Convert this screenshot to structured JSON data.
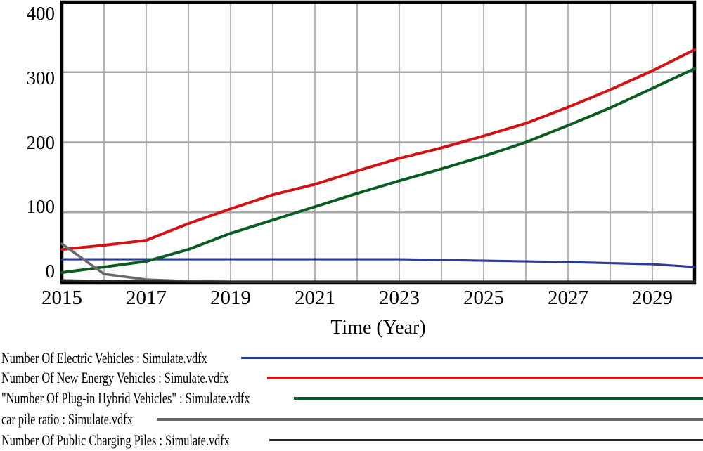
{
  "chart_data": {
    "type": "line",
    "title": "",
    "xlabel": "Time (Year)",
    "ylabel": "",
    "xlim": [
      2015,
      2030
    ],
    "ylim": [
      0,
      400
    ],
    "y_ticks": [
      400,
      300,
      200,
      100,
      0
    ],
    "y_gridlines": [
      100,
      200,
      300
    ],
    "x_tick_labels": [
      "2015",
      "2017",
      "2019",
      "2021",
      "2023",
      "2025",
      "2027",
      "2029"
    ],
    "grid": "vertical line every year, horizontal line every 100 units",
    "legend_position": "below chart, left-aligned text with rule extending to right edge",
    "x": [
      2015,
      2016,
      2017,
      2018,
      2019,
      2020,
      2021,
      2022,
      2023,
      2024,
      2025,
      2026,
      2027,
      2028,
      2029,
      2030
    ],
    "series": [
      {
        "name": "Number Of Electric Vehicles : Simulate.vdfx",
        "color": "#2c3b94",
        "line_width": 3.2,
        "legend_line_height": 3,
        "values": [
          33,
          33,
          33,
          33,
          33,
          33,
          33,
          33,
          33,
          32,
          31,
          30,
          29,
          27.5,
          26,
          22
        ]
      },
      {
        "name": "Number Of New Energy Vehicles : Simulate.vdfx",
        "color": "#d01414",
        "line_width": 4,
        "legend_line_height": 4,
        "values": [
          47,
          53,
          60,
          84,
          105,
          125,
          140,
          159,
          177,
          192,
          209,
          227,
          250,
          275,
          302,
          332
        ]
      },
      {
        "name": "\"Number Of Plug-in Hybrid Vehicles\" : Simulate.vdfx",
        "color": "#0b5c23",
        "line_width": 4,
        "legend_line_height": 4,
        "values": [
          14,
          22,
          30,
          47,
          70,
          89,
          108,
          127,
          145,
          162,
          180,
          200,
          224,
          249,
          277,
          305
        ]
      },
      {
        "name": "car pile ratio : Simulate.vdfx",
        "color": "#6a6a6a",
        "line_width": 3.6,
        "legend_line_height": 4,
        "values": [
          55,
          12,
          4,
          1.5,
          1,
          1,
          1,
          1,
          1,
          1,
          1,
          1,
          1,
          1,
          1,
          1
        ]
      },
      {
        "name": "Number Of Public Charging Piles : Simulate.vdfx",
        "color": "#2a2a2a",
        "line_width": 3,
        "legend_line_height": 3,
        "values": [
          3,
          2,
          1.5,
          1,
          1,
          1,
          1,
          1,
          1,
          1,
          1,
          1,
          1,
          1,
          1,
          1
        ]
      }
    ],
    "colors": {
      "plot_border": "#000000",
      "vertical_gridline": "#b5b5b5",
      "horizontal_gridline": "#a8a8a8",
      "background": "#ffffff",
      "text": "#000000"
    }
  }
}
